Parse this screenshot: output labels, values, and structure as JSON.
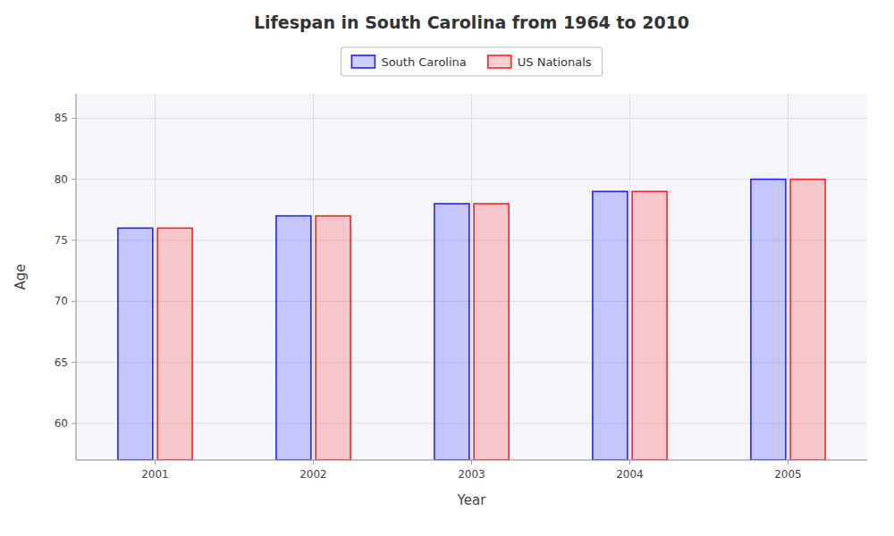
{
  "chart_data": {
    "type": "bar",
    "title": "Lifespan in South Carolina from 1964 to 2010",
    "x_label": "Year",
    "y_label": "Age",
    "categories": [
      "2001",
      "2002",
      "2003",
      "2004",
      "2005"
    ],
    "series": [
      {
        "name": "South Carolina",
        "color": "#2222ff",
        "values": [
          76,
          77,
          78,
          79,
          80
        ]
      },
      {
        "name": "US Nationals",
        "color": "#ff2222",
        "values": [
          76,
          77,
          78,
          79,
          80
        ]
      }
    ],
    "ylim": [
      57,
      87
    ],
    "yticks": [
      60,
      65,
      70,
      75,
      80,
      85
    ],
    "grid": true,
    "legend": "top"
  }
}
